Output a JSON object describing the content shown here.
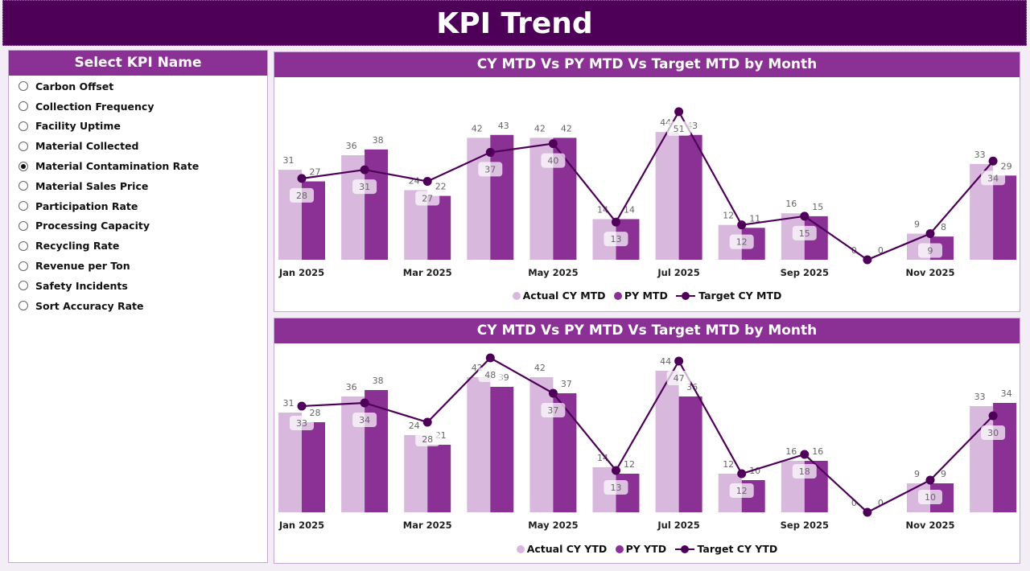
{
  "header": {
    "title": "KPI Trend"
  },
  "slicer": {
    "title": "Select KPI Name",
    "items": [
      "Carbon Offset",
      "Collection Frequency",
      "Facility Uptime",
      "Material Collected",
      "Material Contamination Rate",
      "Material Sales Price",
      "Participation Rate",
      "Processing Capacity",
      "Recycling Rate",
      "Revenue per Ton",
      "Safety Incidents",
      "Sort Accuracy Rate"
    ],
    "selected": "Material Contamination Rate"
  },
  "colors": {
    "actual": "#d8b9dd",
    "py": "#8b3196",
    "target": "#4e0058",
    "header": "#4e0058",
    "panel_title": "#8b3196"
  },
  "chart_data": [
    {
      "type": "bar",
      "title": "CY MTD Vs PY MTD Vs Target MTD by Month",
      "categories": [
        "Jan 2025",
        "Feb 2025",
        "Mar 2025",
        "Apr 2025",
        "May 2025",
        "Jun 2025",
        "Jul 2025",
        "Aug 2025",
        "Sep 2025",
        "Oct 2025",
        "Nov 2025",
        "Dec 2025"
      ],
      "tick_labels": [
        "Jan 2025",
        "",
        "Mar 2025",
        "",
        "May 2025",
        "",
        "Jul 2025",
        "",
        "Sep 2025",
        "",
        "Nov 2025",
        ""
      ],
      "series": [
        {
          "name": "Actual CY MTD",
          "kind": "bar",
          "values": [
            31,
            36,
            24,
            42,
            42,
            14,
            44,
            12,
            16,
            0,
            9,
            33
          ]
        },
        {
          "name": "PY MTD",
          "kind": "bar",
          "values": [
            27,
            38,
            22,
            43,
            42,
            14,
            43,
            11,
            15,
            0,
            8,
            29
          ]
        },
        {
          "name": "Target CY MTD",
          "kind": "line",
          "values": [
            28,
            31,
            27,
            37,
            40,
            13,
            51,
            12,
            15,
            0,
            9,
            34
          ]
        }
      ],
      "ylim": [
        0,
        59
      ],
      "grid": false,
      "legend": "bottom"
    },
    {
      "type": "bar",
      "title": "CY MTD Vs PY MTD Vs Target MTD by Month",
      "categories": [
        "Jan 2025",
        "Feb 2025",
        "Mar 2025",
        "Apr 2025",
        "May 2025",
        "Jun 2025",
        "Jul 2025",
        "Aug 2025",
        "Sep 2025",
        "Oct 2025",
        "Nov 2025",
        "Dec 2025"
      ],
      "tick_labels": [
        "Jan 2025",
        "",
        "Mar 2025",
        "",
        "May 2025",
        "",
        "Jul 2025",
        "",
        "Sep 2025",
        "",
        "Nov 2025",
        ""
      ],
      "series": [
        {
          "name": "Actual CY YTD",
          "kind": "bar",
          "values": [
            31,
            36,
            24,
            42,
            42,
            14,
            44,
            12,
            16,
            0,
            9,
            33
          ]
        },
        {
          "name": "PY YTD",
          "kind": "bar",
          "values": [
            28,
            38,
            21,
            39,
            37,
            12,
            36,
            10,
            16,
            0,
            9,
            34
          ]
        },
        {
          "name": "Target CY YTD",
          "kind": "line",
          "values": [
            33,
            34,
            28,
            48,
            37,
            13,
            47,
            12,
            18,
            0,
            10,
            30
          ]
        }
      ],
      "ylim": [
        0,
        52
      ],
      "grid": false,
      "legend": "bottom"
    }
  ]
}
